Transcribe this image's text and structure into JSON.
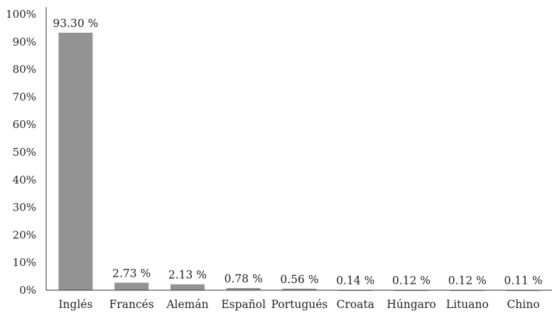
{
  "chart_data": {
    "type": "bar",
    "title": "",
    "xlabel": "",
    "ylabel": "",
    "ylim": [
      0,
      100
    ],
    "yticks": [
      "0%",
      "10%",
      "20%",
      "30%",
      "40%",
      "50%",
      "60%",
      "70%",
      "80%",
      "90%",
      "100%"
    ],
    "categories": [
      "Inglés",
      "Francés",
      "Alemán",
      "Español",
      "Portugués",
      "Croata",
      "Húngaro",
      "Lituano",
      "Chino"
    ],
    "values": [
      93.3,
      2.73,
      2.13,
      0.78,
      0.56,
      0.14,
      0.12,
      0.12,
      0.11
    ],
    "data_labels": [
      "93.30 %",
      "2.73 %",
      "2.13 %",
      "0.78 %",
      "0.56 %",
      "0.14 %",
      "0.12 %",
      "0.12 %",
      "0.11 %"
    ],
    "grid": false,
    "legend": "none",
    "bar_color": "#939393",
    "axis_color": "#333333"
  }
}
